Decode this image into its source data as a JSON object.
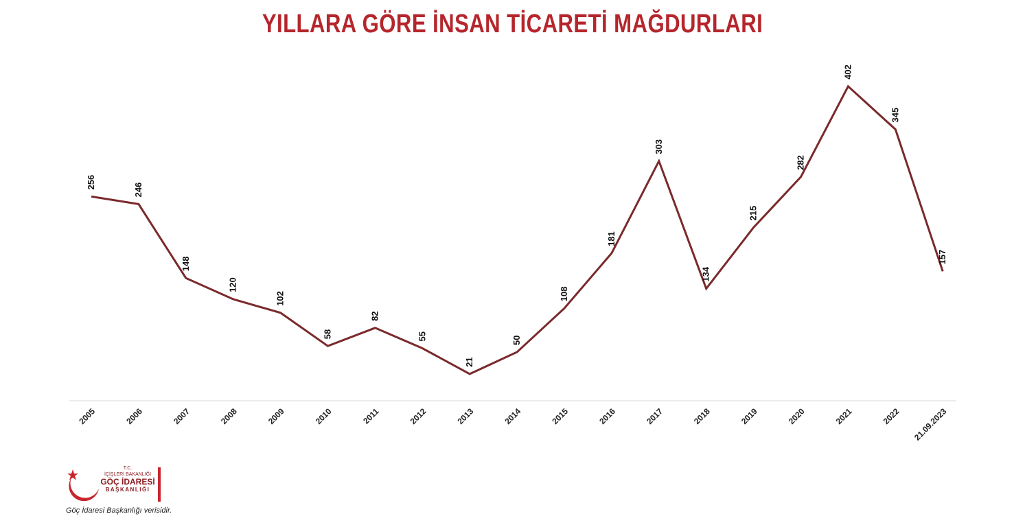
{
  "title": "YILLARA GÖRE İNSAN TİCARETİ MAĞDURLARI",
  "logo": {
    "line1": "T.C.",
    "line2": "İÇİŞLERİ BAKANLIĞI",
    "line3": "GÖÇ İDARESİ",
    "line4": "BAŞKANLIĞI"
  },
  "source_note": "Göç İdaresi Başkanlığı verisidir.",
  "colors": {
    "title": "#b5262c",
    "line": "#7a2a2c",
    "axis": "#d9d9d9",
    "logo_red": "#c8252d"
  },
  "chart_data": {
    "type": "line",
    "title": "YILLARA GÖRE İNSAN TİCARETİ MAĞDURLARI",
    "xlabel": "",
    "ylabel": "",
    "categories": [
      "2005",
      "2006",
      "2007",
      "2008",
      "2009",
      "2010",
      "2011",
      "2012",
      "2013",
      "2014",
      "2015",
      "2016",
      "2017",
      "2018",
      "2019",
      "2020",
      "2021",
      "2022",
      "21.09.2023"
    ],
    "series": [
      {
        "values": [
          256,
          246,
          148,
          120,
          102,
          58,
          82,
          55,
          21,
          50,
          108,
          181,
          303,
          134,
          215,
          282,
          402,
          345,
          157
        ]
      }
    ],
    "ylim": [
      0,
      430
    ],
    "grid": false,
    "legend": "none",
    "data_labels": true
  }
}
